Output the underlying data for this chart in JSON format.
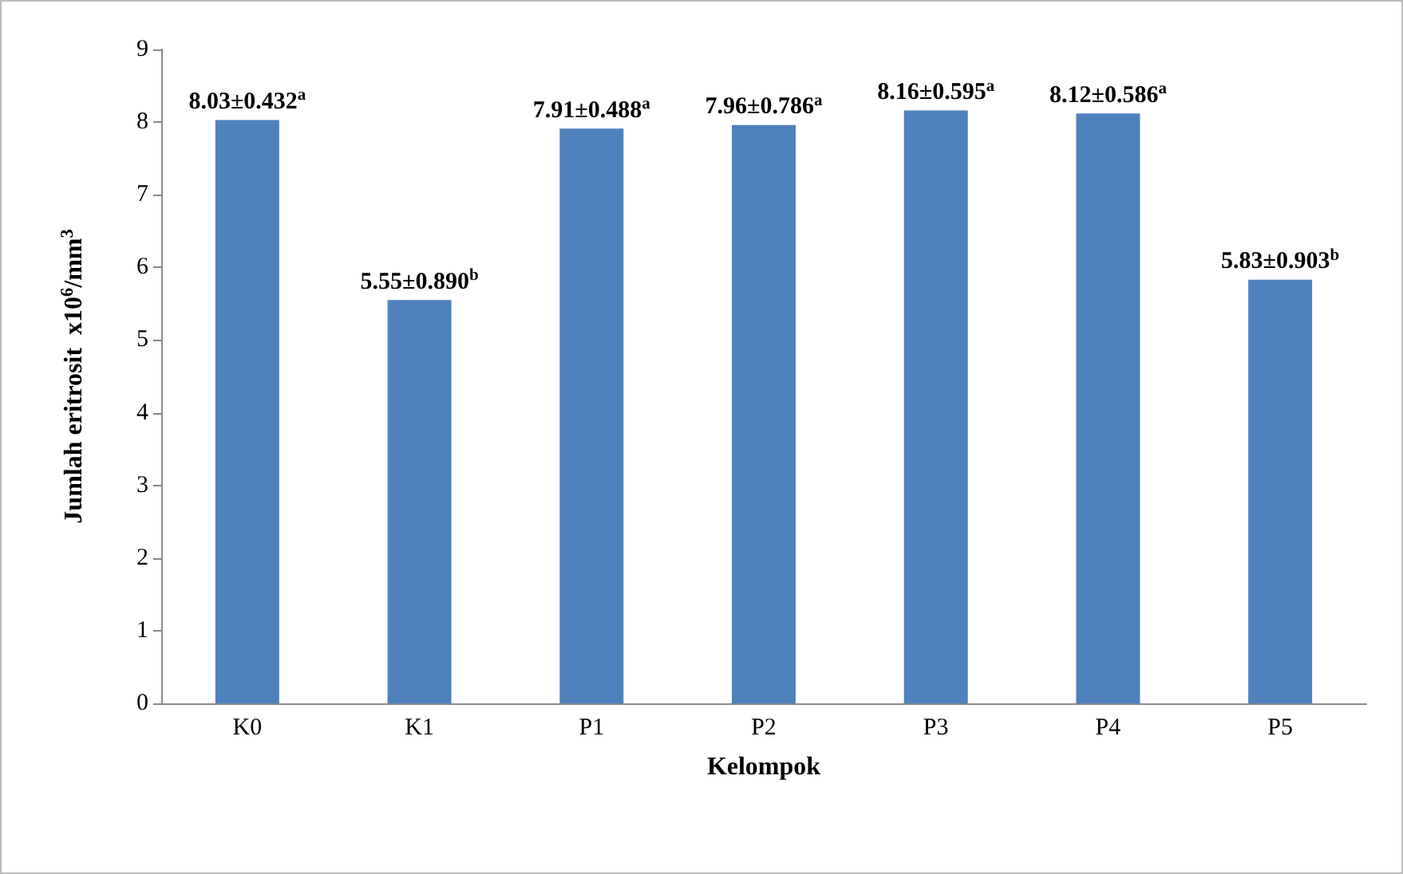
{
  "chart_data": {
    "type": "bar",
    "xlabel": "Kelompok",
    "ylabel": "Jumlah eritrosit  x10$^{6}$/mm$^{3}$",
    "categories": [
      "K0",
      "K1",
      "P1",
      "P2",
      "P3",
      "P4",
      "P5"
    ],
    "values": [
      8.03,
      5.55,
      7.91,
      7.96,
      8.16,
      8.12,
      5.83
    ],
    "value_labels": [
      "8.03±0.432$^{a}$",
      "5.55±0.890$^{b}$",
      "7.91±0.488$^{a}$",
      "7.96±0.786$^{a}$",
      "8.16±0.595$^{a}$",
      "8.12±0.586$^{a}$",
      "5.83±0.903$^{b}$"
    ],
    "color": "#4f81bd",
    "ylim": [
      0,
      9
    ],
    "yticks": [
      0,
      1,
      2,
      3,
      4,
      5,
      6,
      7,
      8,
      9
    ]
  }
}
